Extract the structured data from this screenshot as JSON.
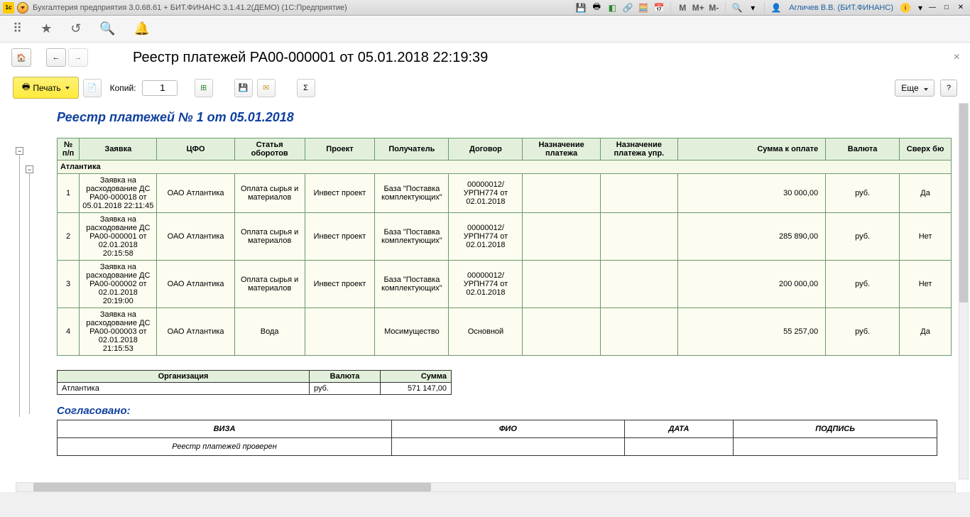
{
  "titleBar": {
    "appTitle": "Бухгалтерия предприятия 3.0.68.61 + БИТ.ФИНАНС 3.1.41.2(ДЕМО)  (1С:Предприятие)",
    "user": "Агличев В.В. (БИТ.ФИНАНС)"
  },
  "header": {
    "title": "Реестр платежей РА00-000001 от 05.01.2018 22:19:39"
  },
  "toolbar": {
    "print": "Печать",
    "copies": "Копий:",
    "copiesValue": "1",
    "more": "Еще"
  },
  "report": {
    "title": "Реестр платежей № 1 от 05.01.2018",
    "columns": [
      "№ п/п",
      "Заявка",
      "ЦФО",
      "Статья оборотов",
      "Проект",
      "Получатель",
      "Договор",
      "Назначение платежа",
      "Назначение платежа упр.",
      "Сумма к оплате",
      "Валюта",
      "Сверх бю"
    ],
    "groupName": "Атлантика",
    "rows": [
      {
        "n": "1",
        "zayavka": "Заявка на расходование ДС РА00-000018 от 05.01.2018 22:11:45",
        "cfo": "ОАО Атлантика",
        "stat": "Оплата сырья и материалов",
        "proj": "Инвест проект",
        "recv": "База \"Поставка комплектующих\"",
        "dog": "00000012/УРПН774 от 02.01.2018",
        "nazn": "",
        "naznu": "",
        "sum": "30 000,00",
        "val": "руб.",
        "over": "Да"
      },
      {
        "n": "2",
        "zayavka": "Заявка на расходование ДС РА00-000001 от 02.01.2018 20:15:58",
        "cfo": "ОАО Атлантика",
        "stat": "Оплата сырья и материалов",
        "proj": "Инвест проект",
        "recv": "База \"Поставка комплектующих\"",
        "dog": "00000012/УРПН774 от 02.01.2018",
        "nazn": "",
        "naznu": "",
        "sum": "285 890,00",
        "val": "руб.",
        "over": "Нет"
      },
      {
        "n": "3",
        "zayavka": "Заявка на расходование ДС РА00-000002 от 02.01.2018 20:19:00",
        "cfo": "ОАО Атлантика",
        "stat": "Оплата сырья и материалов",
        "proj": "Инвест проект",
        "recv": "База \"Поставка комплектующих\"",
        "dog": "00000012/УРПН774 от 02.01.2018",
        "nazn": "",
        "naznu": "",
        "sum": "200 000,00",
        "val": "руб.",
        "over": "Нет"
      },
      {
        "n": "4",
        "zayavka": "Заявка на расходование ДС РА00-000003 от 02.01.2018 21:15:53",
        "cfo": "ОАО Атлантика",
        "stat": "Вода",
        "proj": "",
        "recv": "Мосимущество",
        "dog": "Основной",
        "nazn": "",
        "naznu": "",
        "sum": "55 257,00",
        "val": "руб.",
        "over": "Да"
      }
    ],
    "summaryHeaders": [
      "Организация",
      "Валюта",
      "Сумма"
    ],
    "summaryRow": {
      "org": "Атлантика",
      "val": "руб.",
      "sum": "571 147,00"
    },
    "agreed": "Согласовано:",
    "approvalHeaders": [
      "ВИЗА",
      "ФИО",
      "ДАТА",
      "ПОДПИСЬ"
    ],
    "approvalRow": "Реестр платежей проверен",
    "colors": {
      "header_bg": "#e2f0db",
      "group_bg": "#f7f9e8",
      "row_bg": "#fcfcf0",
      "border": "#6a9a6a",
      "title_color": "#1040a0"
    }
  }
}
